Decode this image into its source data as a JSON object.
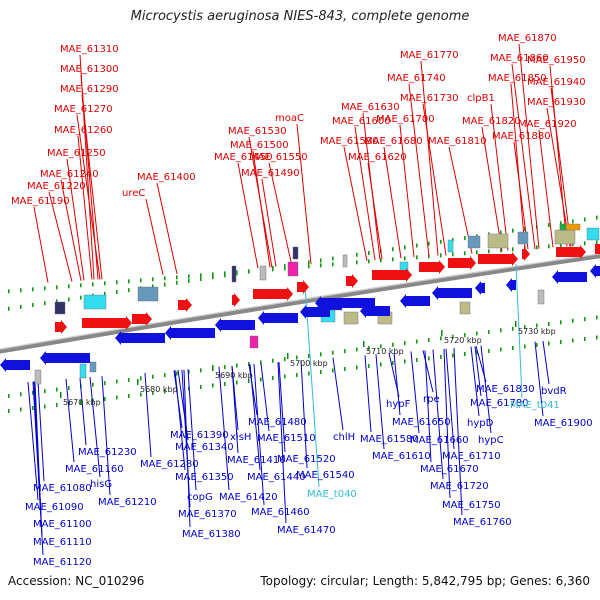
{
  "title": "Microcystis aeruginosa NIES-843, complete genome",
  "footer": {
    "accession": "Accession: NC_010296",
    "summary": "Topology: circular; Length: 5,842,795 bp; Genes: 6,360"
  },
  "colors": {
    "top_label": "#dd0000",
    "bottom_label": "#0000cc",
    "trna_label": "#33bbdd",
    "forward_gene": "#ee1111",
    "reverse_gene": "#1111dd",
    "backbone": "#888888",
    "tick_green": "#119911",
    "feature_cyan": "#33ddee",
    "feature_khaki": "#bbbb88",
    "feature_steel": "#6699bb",
    "feature_magenta": "#ee22aa",
    "feature_grey": "#bbbbbb",
    "feature_navy": "#333366"
  },
  "scale_labels": [
    "5670 kbp",
    "5680 kbp",
    "5690 kbp",
    "5700 kbp",
    "5710 kbp",
    "5720 kbp",
    "5730 kbp"
  ],
  "top_labels": [
    "MAE_61310",
    "MAE_61300",
    "MAE_61290",
    "MAE_61270",
    "MAE_61260",
    "MAE_61250",
    "MAE_61240",
    "MAE_61220",
    "MAE_61190",
    "ureC",
    "MAE_61400",
    "MAE_61530",
    "moaC",
    "MAE_61500",
    "MAE_61450",
    "MAE_61550",
    "MAE_61490",
    "MAE_61630",
    "MAE_61600",
    "MAE_61590",
    "MAE_61620",
    "MAE_61770",
    "MAE_61740",
    "MAE_61730",
    "MAE_61700",
    "MAE_61680",
    "MAE_61870",
    "MAE_61860",
    "MAE_61850",
    "clpB1",
    "MAE_61820",
    "MAE_61810",
    "MAE_61880",
    "MAE_61950",
    "MAE_61940",
    "MAE_61930",
    "MAE_61920"
  ],
  "bottom_labels": [
    "MAE_61230",
    "MAE_61160",
    "hisG",
    "MAE_61080",
    "MAE_61210",
    "MAE_61090",
    "MAE_61100",
    "MAE_61110",
    "MAE_61120",
    "MAE_61280",
    "MAE_61390",
    "MAE_61340",
    "xisH",
    "MAE_61480",
    "MAE_61350",
    "MAE_61410",
    "MAE_61510",
    "MAE_61440",
    "MAE_61520",
    "copG",
    "MAE_61420",
    "MAE_61540",
    "MAE_61370",
    "MAE_61460",
    "MAE_61380",
    "MAE_61470",
    "chlH",
    "MAE_61580",
    "MAE_61610",
    "hypF",
    "MAE_61650",
    "MAE_61660",
    "rpe",
    "MAE_61670",
    "MAE_61710",
    "MAE_61720",
    "MAE_61750",
    "MAE_61760",
    "MAE_61830",
    "MAE_61780",
    "hypD",
    "hypC",
    "bvdR",
    "MAE_61900"
  ],
  "trna_labels": [
    "MAE_t040",
    "MAE_t041"
  ]
}
